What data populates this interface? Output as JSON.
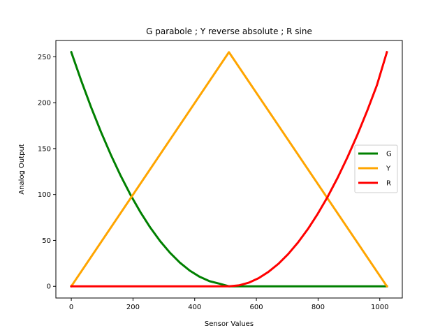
{
  "chart_data": {
    "type": "line",
    "title": "G parabole ; Y reverse absolute ; R sine",
    "xlabel": "Sensor Values",
    "ylabel": "Analog Output",
    "xlim": [
      -50,
      1073
    ],
    "ylim": [
      -12.75,
      267.75
    ],
    "xticks": [
      0,
      200,
      400,
      600,
      800,
      1000
    ],
    "yticks": [
      0,
      50,
      100,
      150,
      200,
      250
    ],
    "grid": false,
    "legend_position": "center-right",
    "series": [
      {
        "name": "G",
        "color": "#008000",
        "x": [
          0,
          32,
          64,
          96,
          128,
          160,
          192,
          224,
          256,
          288,
          320,
          352,
          384,
          416,
          448,
          480,
          511,
          600,
          700,
          800,
          900,
          1023
        ],
        "y": [
          255,
          224.1,
          195.2,
          168.3,
          143.4,
          120.5,
          99.6,
          80.8,
          64,
          49.2,
          36.5,
          25.8,
          17.1,
          10.4,
          5.6,
          2.9,
          0,
          0,
          0,
          0,
          0,
          0
        ]
      },
      {
        "name": "Y",
        "color": "#ffa500",
        "x": [
          0,
          511,
          1023
        ],
        "y": [
          0,
          255,
          0
        ]
      },
      {
        "name": "R",
        "color": "#ff0000",
        "x": [
          0,
          100,
          200,
          300,
          400,
          511,
          543,
          575,
          607,
          639,
          671,
          703,
          735,
          767,
          799,
          831,
          863,
          895,
          927,
          959,
          991,
          1023
        ],
        "y": [
          0,
          0,
          0,
          0,
          0,
          0,
          1,
          3.9,
          8.8,
          15.7,
          24.4,
          35.1,
          47.8,
          62.4,
          79,
          97.5,
          118,
          140.4,
          164.7,
          191,
          219.3,
          255
        ]
      }
    ]
  }
}
